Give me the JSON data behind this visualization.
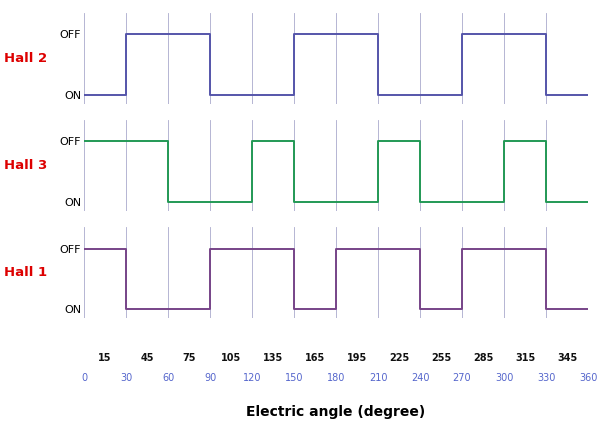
{
  "title": "Electric angle (degree)",
  "hall_labels": [
    "Hall 2",
    "Hall 3",
    "Hall 1"
  ],
  "hall_colors": [
    "#5555aa",
    "#229955",
    "#774488"
  ],
  "hall_label_color": "#dd0000",
  "grid_color": "#aaaacc",
  "tick_color_black": "#111111",
  "tick_color_blue": "#5566cc",
  "background_color": "#ffffff",
  "xmin": 0,
  "xmax": 360,
  "black_ticks": [
    15,
    45,
    75,
    105,
    135,
    165,
    195,
    225,
    255,
    285,
    315,
    345
  ],
  "blue_ticks": [
    0,
    30,
    60,
    90,
    120,
    150,
    180,
    210,
    240,
    270,
    300,
    330,
    360
  ],
  "grid_lines": [
    0,
    30,
    60,
    90,
    120,
    150,
    180,
    210,
    240,
    270,
    300,
    330,
    360
  ],
  "hall2": {
    "x": [
      0,
      30,
      30,
      90,
      90,
      150,
      150,
      210,
      210,
      270,
      270,
      330,
      330,
      360
    ],
    "y": [
      0,
      0,
      1,
      1,
      0,
      0,
      1,
      1,
      0,
      0,
      1,
      1,
      0,
      0
    ]
  },
  "hall3": {
    "x": [
      0,
      60,
      60,
      120,
      120,
      150,
      150,
      210,
      210,
      240,
      240,
      300,
      300,
      330,
      330,
      360
    ],
    "y": [
      1,
      1,
      0,
      0,
      1,
      1,
      0,
      0,
      1,
      1,
      0,
      0,
      1,
      1,
      0,
      0
    ]
  },
  "hall1": {
    "x": [
      0,
      30,
      30,
      90,
      90,
      150,
      150,
      180,
      180,
      240,
      240,
      270,
      270,
      330,
      330,
      360
    ],
    "y": [
      1,
      1,
      0,
      0,
      1,
      1,
      0,
      0,
      1,
      1,
      0,
      0,
      1,
      1,
      0,
      0
    ]
  }
}
